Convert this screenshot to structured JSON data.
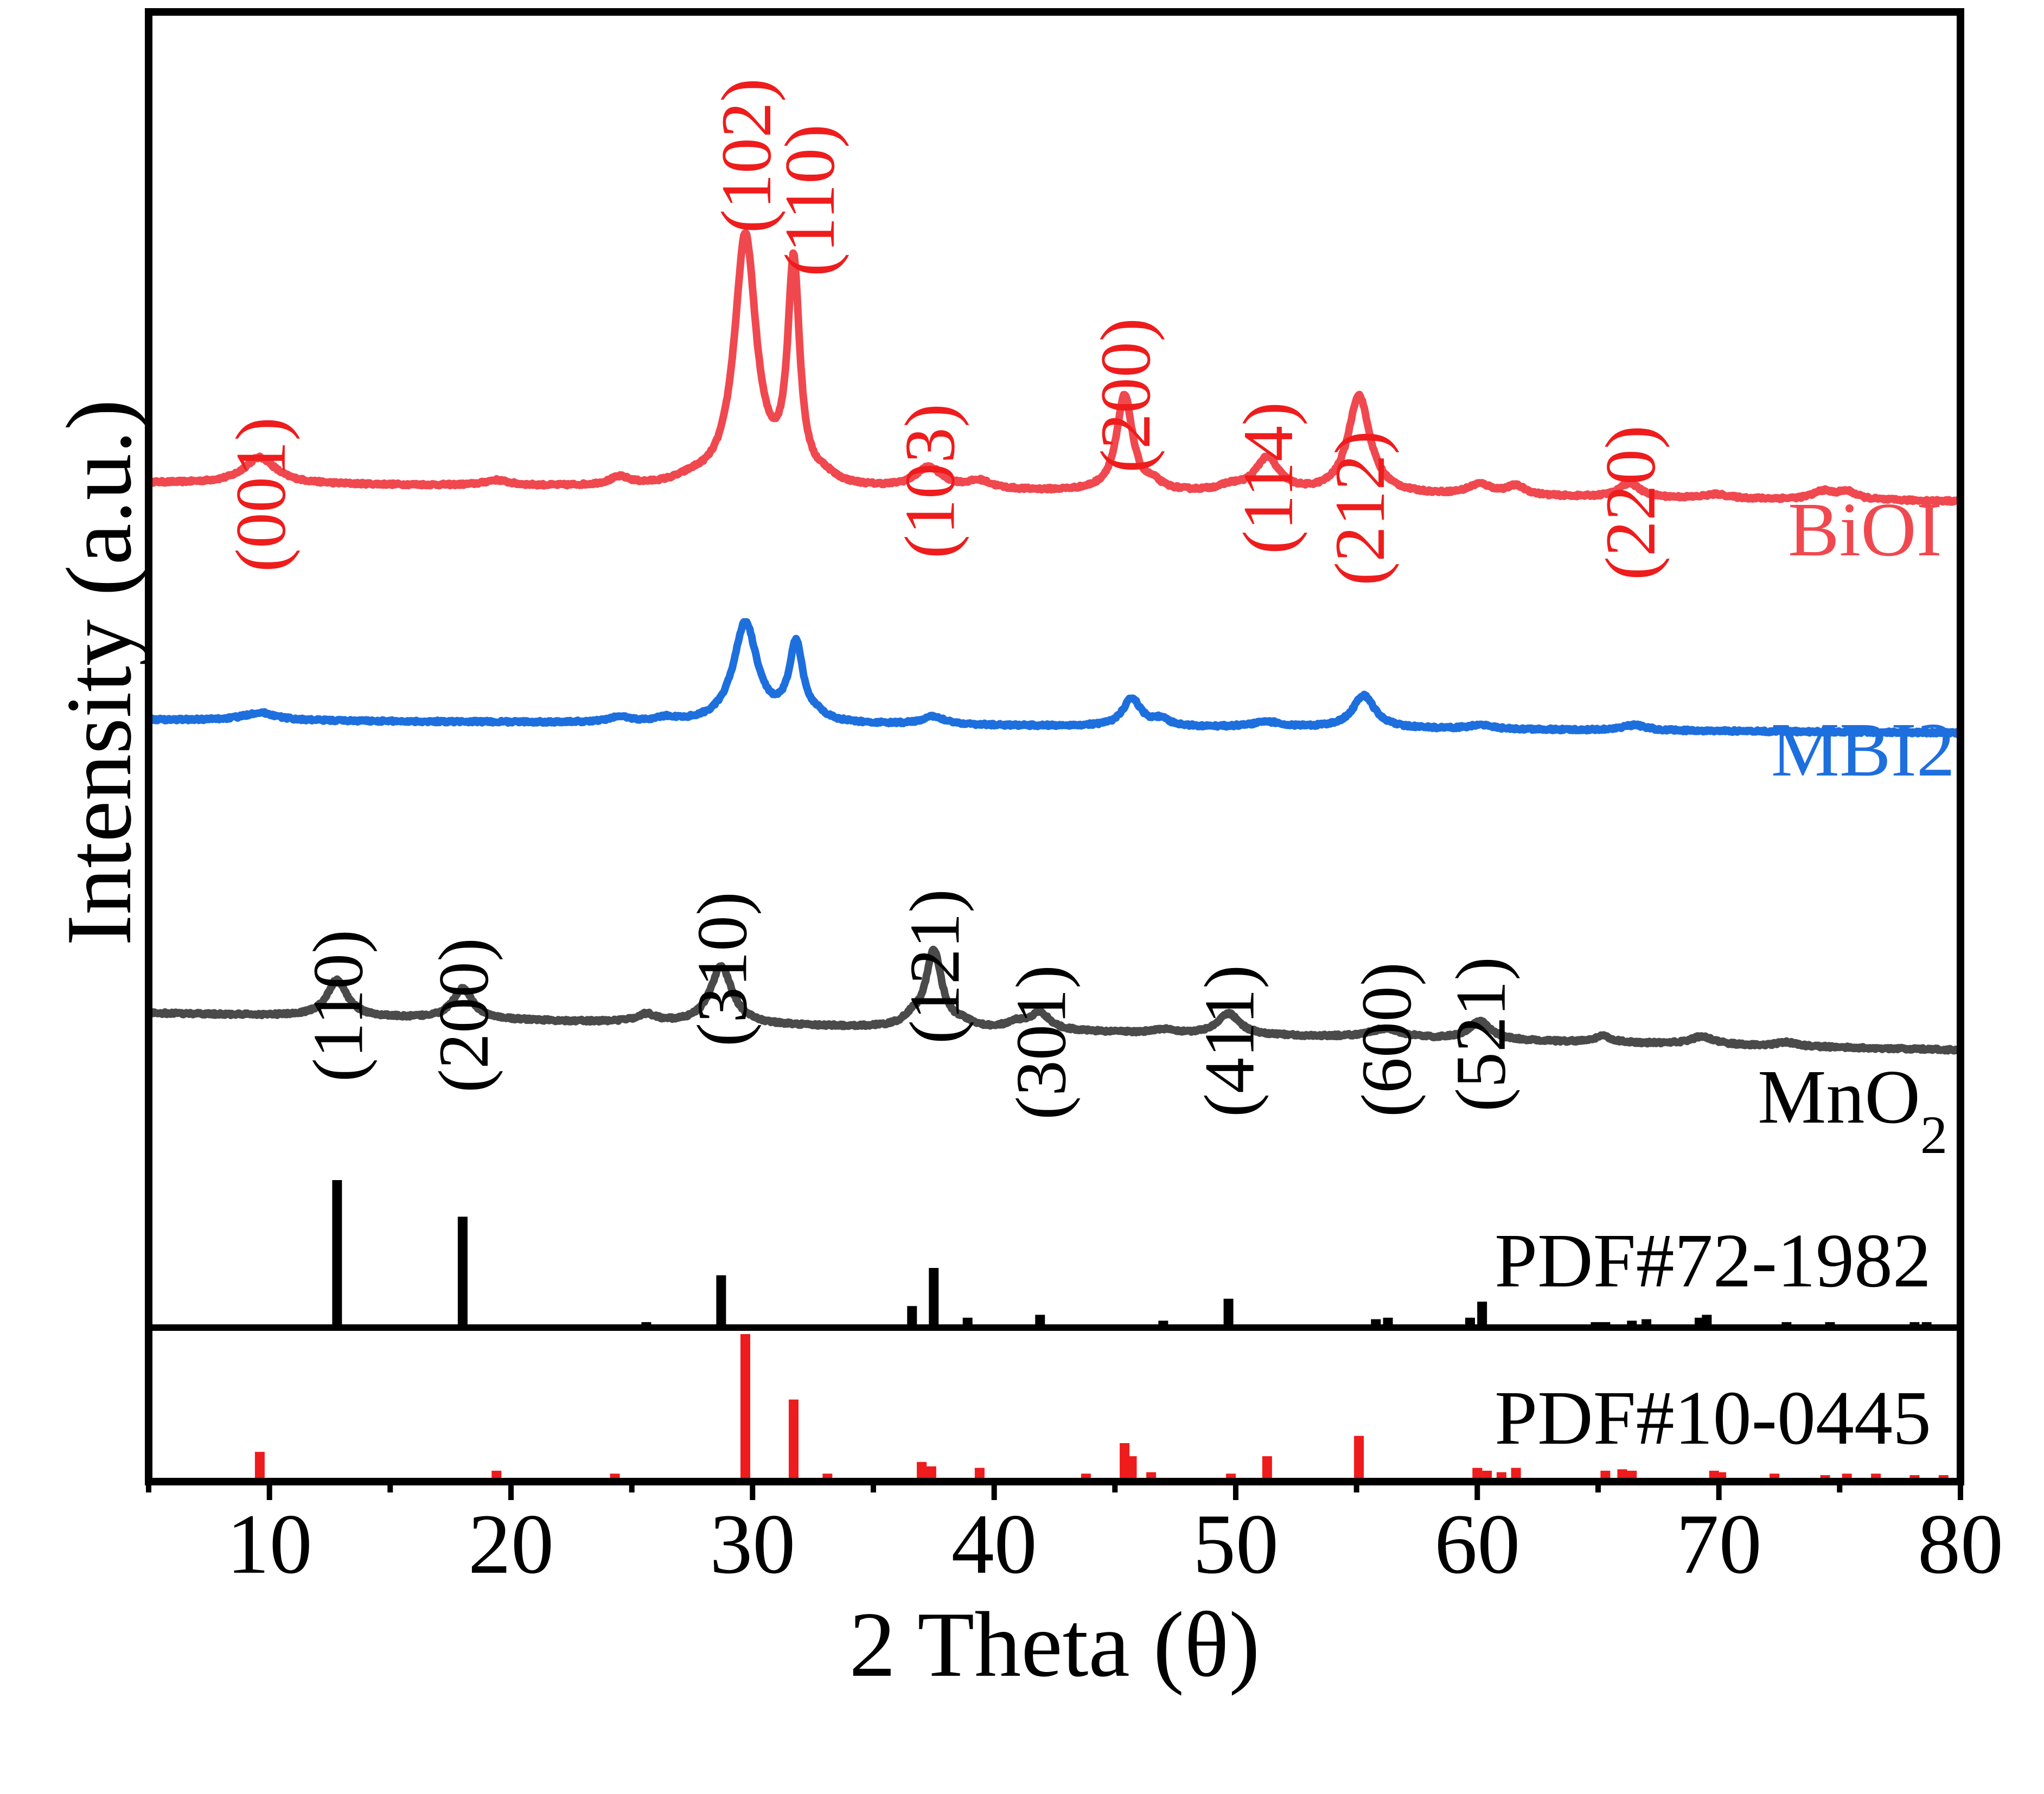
{
  "chart_data": {
    "type": "line",
    "xlabel": "2 Theta (θ)",
    "ylabel": "Intensity (a.u.)",
    "xlim": [
      5,
      80
    ],
    "xticks": [
      10,
      20,
      30,
      40,
      50,
      60,
      70,
      80
    ],
    "ylim": [
      0,
      100
    ],
    "grid": false,
    "series": [
      {
        "name": "BiOI",
        "color": "#f0484f",
        "baseline": [
          [
            5,
            64.2
          ],
          [
            80,
            62.8
          ]
        ],
        "peaks": [
          [
            9.6,
            2.0,
            0.8
          ],
          [
            19.4,
            0.4,
            0.6
          ],
          [
            24.5,
            0.6,
            0.5
          ],
          [
            27.5,
            0.4,
            0.8
          ],
          [
            29.7,
            19.0,
            0.55
          ],
          [
            31.7,
            16.5,
            0.3
          ],
          [
            33.0,
            0.5,
            0.5
          ],
          [
            37.3,
            1.6,
            0.7
          ],
          [
            39.4,
            0.6,
            0.6
          ],
          [
            45.4,
            7.3,
            0.4
          ],
          [
            46.6,
            0.5,
            0.4
          ],
          [
            49.8,
            0.4,
            0.6
          ],
          [
            51.3,
            2.6,
            0.6
          ],
          [
            55.1,
            7.5,
            0.55
          ],
          [
            60.1,
            0.8,
            0.6
          ],
          [
            61.6,
            0.7,
            0.5
          ],
          [
            66.3,
            1.1,
            0.5
          ],
          [
            69.9,
            0.3,
            0.6
          ],
          [
            74.3,
            0.6,
            0.5
          ],
          [
            75.3,
            0.6,
            0.5
          ]
        ],
        "label": "BiOI",
        "hkl_labels": [
          {
            "x": 9.6,
            "text": "(001)"
          },
          {
            "x": 29.7,
            "text": "(102)"
          },
          {
            "x": 31.7,
            "text": "(110)"
          },
          {
            "x": 37.3,
            "text": "(103)"
          },
          {
            "x": 45.4,
            "text": "(200)"
          },
          {
            "x": 51.3,
            "text": "(114)"
          },
          {
            "x": 55.1,
            "text": "(212)"
          },
          {
            "x": 66.3,
            "text": "(220)"
          }
        ]
      },
      {
        "name": "MBI2",
        "color": "#1e6fde",
        "baseline": [
          [
            5,
            46.2
          ],
          [
            80,
            45.2
          ]
        ],
        "peaks": [
          [
            9.6,
            0.6,
            0.8
          ],
          [
            24.5,
            0.4,
            0.5
          ],
          [
            26.4,
            0.3,
            0.5
          ],
          [
            29.7,
            7.6,
            0.6
          ],
          [
            31.8,
            5.8,
            0.35
          ],
          [
            32.7,
            0.4,
            0.4
          ],
          [
            37.5,
            0.6,
            0.6
          ],
          [
            45.7,
            2.1,
            0.45
          ],
          [
            46.9,
            0.5,
            0.4
          ],
          [
            51.3,
            0.4,
            0.8
          ],
          [
            55.3,
            2.5,
            0.55
          ],
          [
            60.1,
            0.3,
            0.6
          ],
          [
            66.5,
            0.4,
            0.6
          ]
        ],
        "label": "MBI2",
        "hkl_labels": []
      },
      {
        "name": "MnO2",
        "color": "#4a4a4a",
        "baseline": [
          [
            5,
            23.9
          ],
          [
            80,
            21.1
          ]
        ],
        "peaks": [
          [
            12.8,
            2.8,
            0.5
          ],
          [
            18.0,
            2.3,
            0.5
          ],
          [
            25.6,
            0.6,
            0.5
          ],
          [
            28.7,
            4.4,
            0.55
          ],
          [
            36.6,
            0.6,
            0.4
          ],
          [
            37.5,
            5.9,
            0.4
          ],
          [
            38.7,
            0.4,
            0.4
          ],
          [
            40.9,
            0.5,
            0.5
          ],
          [
            41.9,
            1.3,
            0.5
          ],
          [
            47.0,
            0.3,
            0.5
          ],
          [
            49.7,
            1.6,
            0.55
          ],
          [
            56.2,
            0.7,
            0.8
          ],
          [
            60.1,
            1.4,
            0.55
          ],
          [
            65.2,
            0.5,
            0.4
          ],
          [
            69.3,
            0.6,
            0.6
          ],
          [
            72.8,
            0.3,
            0.5
          ]
        ],
        "label": "MnO2",
        "hkl_labels": [
          {
            "x": 12.8,
            "text": "(110)"
          },
          {
            "x": 18.0,
            "text": "(200)"
          },
          {
            "x": 28.7,
            "text": "(310)"
          },
          {
            "x": 37.5,
            "text": "(121)"
          },
          {
            "x": 41.9,
            "text": "(301)"
          },
          {
            "x": 49.7,
            "text": "(411)"
          },
          {
            "x": 56.2,
            "text": "(600)"
          },
          {
            "x": 60.1,
            "text": "(521)"
          }
        ]
      }
    ],
    "reference_patterns": [
      {
        "name": "PDF#72-1982",
        "color": "#000000",
        "lines": [
          [
            12.8,
            100
          ],
          [
            18.0,
            75
          ],
          [
            25.6,
            3
          ],
          [
            28.7,
            35
          ],
          [
            36.6,
            14
          ],
          [
            37.5,
            40
          ],
          [
            38.9,
            6
          ],
          [
            41.9,
            8
          ],
          [
            47.0,
            4
          ],
          [
            49.7,
            19
          ],
          [
            55.8,
            5
          ],
          [
            56.3,
            6
          ],
          [
            59.7,
            6
          ],
          [
            60.2,
            17
          ],
          [
            64.9,
            3
          ],
          [
            65.3,
            3
          ],
          [
            66.4,
            4
          ],
          [
            67.0,
            5
          ],
          [
            69.2,
            6
          ],
          [
            69.5,
            8
          ],
          [
            72.8,
            3
          ],
          [
            74.6,
            3
          ],
          [
            78.1,
            3
          ],
          [
            78.6,
            3
          ]
        ]
      },
      {
        "name": "PDF#10-0445",
        "color": "#ee1c1c",
        "lines": [
          [
            9.6,
            19
          ],
          [
            19.4,
            6
          ],
          [
            24.3,
            4
          ],
          [
            29.7,
            100
          ],
          [
            31.7,
            55
          ],
          [
            33.1,
            4
          ],
          [
            37.0,
            12
          ],
          [
            37.4,
            9
          ],
          [
            39.4,
            8
          ],
          [
            43.8,
            4
          ],
          [
            45.4,
            25
          ],
          [
            45.7,
            16
          ],
          [
            46.5,
            5
          ],
          [
            49.8,
            4
          ],
          [
            51.3,
            16
          ],
          [
            55.1,
            30
          ],
          [
            60.0,
            8
          ],
          [
            60.4,
            6
          ],
          [
            61.0,
            5
          ],
          [
            61.6,
            8
          ],
          [
            65.3,
            6
          ],
          [
            66.0,
            7
          ],
          [
            66.4,
            6
          ],
          [
            69.8,
            6
          ],
          [
            70.1,
            5
          ],
          [
            72.3,
            4
          ],
          [
            74.4,
            3
          ],
          [
            75.3,
            4
          ],
          [
            76.5,
            4
          ],
          [
            78.1,
            3
          ],
          [
            79.3,
            3
          ]
        ]
      }
    ]
  }
}
